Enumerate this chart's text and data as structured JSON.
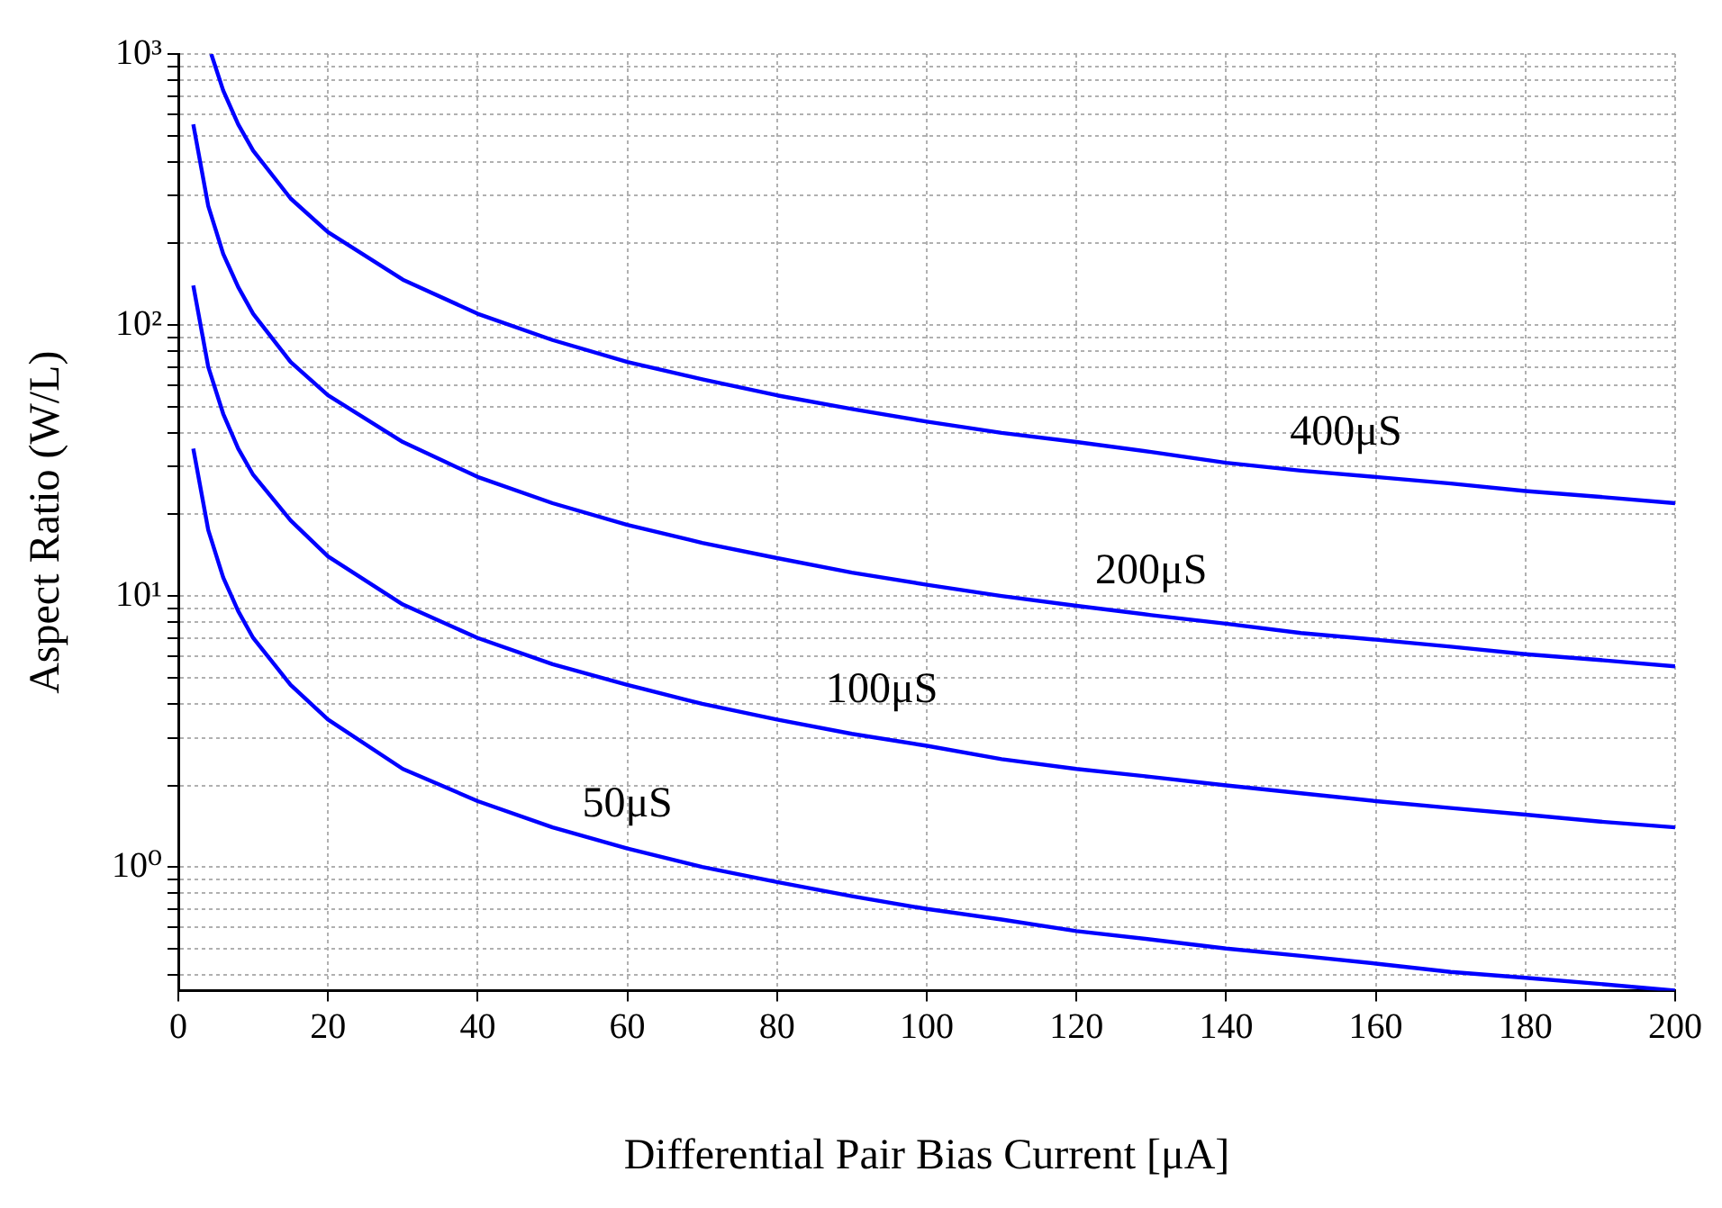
{
  "chart_data": {
    "type": "line",
    "xlabel": "Differential Pair Bias Current [μA]",
    "ylabel": "Aspect Ratio (W/L)",
    "log": "y",
    "grid": true,
    "legend": false,
    "marker": "none",
    "line_style": "solid",
    "xlim": [
      0,
      200
    ],
    "xticks": [
      0,
      20,
      40,
      60,
      80,
      100,
      120,
      140,
      160,
      180,
      200
    ],
    "ylim": [
      0.35,
      1000
    ],
    "yticks": [
      {
        "value": 0.4,
        "label": null
      },
      {
        "value": 0.5,
        "label": null
      },
      {
        "value": 0.6,
        "label": null
      },
      {
        "value": 0.7,
        "label": null
      },
      {
        "value": 0.8,
        "label": null
      },
      {
        "value": 0.9,
        "label": null
      },
      {
        "value": 1,
        "label": "10⁰"
      },
      {
        "value": 2,
        "label": null
      },
      {
        "value": 3,
        "label": null
      },
      {
        "value": 4,
        "label": null
      },
      {
        "value": 5,
        "label": null
      },
      {
        "value": 6,
        "label": null
      },
      {
        "value": 7,
        "label": null
      },
      {
        "value": 8,
        "label": null
      },
      {
        "value": 9,
        "label": null
      },
      {
        "value": 10,
        "label": "10¹"
      },
      {
        "value": 20,
        "label": null
      },
      {
        "value": 30,
        "label": null
      },
      {
        "value": 40,
        "label": null
      },
      {
        "value": 50,
        "label": null
      },
      {
        "value": 60,
        "label": null
      },
      {
        "value": 70,
        "label": null
      },
      {
        "value": 80,
        "label": null
      },
      {
        "value": 90,
        "label": null
      },
      {
        "value": 100,
        "label": "10²"
      },
      {
        "value": 200,
        "label": null
      },
      {
        "value": 300,
        "label": null
      },
      {
        "value": 400,
        "label": null
      },
      {
        "value": 500,
        "label": null
      },
      {
        "value": 600,
        "label": null
      },
      {
        "value": 700,
        "label": null
      },
      {
        "value": 800,
        "label": null
      },
      {
        "value": 900,
        "label": null
      },
      {
        "value": 1000,
        "label": "10³"
      }
    ],
    "x": [
      2,
      4,
      6,
      8,
      10,
      15,
      20,
      30,
      40,
      50,
      60,
      70,
      80,
      90,
      100,
      110,
      120,
      130,
      140,
      150,
      160,
      170,
      180,
      190,
      200
    ],
    "series": [
      {
        "name": "50μS",
        "color": "#0000ff",
        "values": [
          35,
          17.5,
          11.7,
          8.8,
          7,
          4.7,
          3.5,
          2.3,
          1.75,
          1.4,
          1.17,
          1,
          0.88,
          0.78,
          0.7,
          0.64,
          0.58,
          0.54,
          0.5,
          0.47,
          0.44,
          0.41,
          0.39,
          0.37,
          0.35
        ]
      },
      {
        "name": "100μS",
        "color": "#0000ff",
        "values": [
          140,
          70,
          47,
          35,
          28,
          19,
          14,
          9.3,
          7,
          5.6,
          4.7,
          4,
          3.5,
          3.1,
          2.8,
          2.5,
          2.3,
          2.15,
          2,
          1.87,
          1.75,
          1.65,
          1.56,
          1.47,
          1.4
        ]
      },
      {
        "name": "200μS",
        "color": "#0000ff",
        "values": [
          550,
          275,
          183,
          138,
          110,
          73,
          55,
          37,
          27.5,
          22,
          18.3,
          15.7,
          13.8,
          12.2,
          11,
          10,
          9.2,
          8.5,
          7.9,
          7.3,
          6.9,
          6.5,
          6.1,
          5.8,
          5.5
        ]
      },
      {
        "name": "400μS",
        "color": "#0000ff",
        "x": [
          4.4,
          6,
          8,
          10,
          15,
          20,
          30,
          40,
          50,
          60,
          70,
          80,
          90,
          100,
          110,
          120,
          130,
          140,
          150,
          160,
          170,
          180,
          190,
          200
        ],
        "values": [
          1000,
          733,
          550,
          440,
          293,
          220,
          147,
          110,
          88,
          73,
          63,
          55,
          49,
          44,
          40,
          37,
          34,
          31,
          29,
          27.5,
          26,
          24.4,
          23.2,
          22
        ]
      }
    ]
  }
}
